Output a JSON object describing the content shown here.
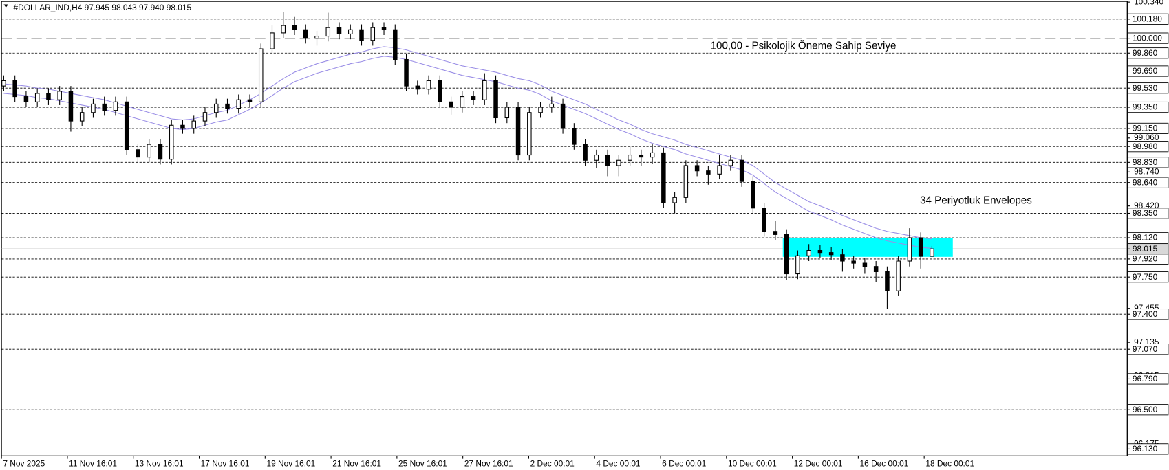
{
  "chart_data": {
    "type": "candlestick",
    "title": "#DOLLAR_IND,H4  97.945 98.043 97.940 98.015",
    "xlabels": [
      "7 Nov 2025",
      "11 Nov 16:01",
      "13 Nov 16:01",
      "17 Nov 16:01",
      "19 Nov 16:01",
      "21 Nov 16:01",
      "25 Nov 16:01",
      "27 Nov 16:01",
      "2 Dec 00:01",
      "4 Dec 00:01",
      "6 Dec 00:01",
      "10 Dec 00:01",
      "12 Dec 00:01",
      "16 Dec 00:01",
      "18 Dec 00:01"
    ],
    "open": [
      99.55,
      99.6,
      99.45,
      99.4,
      99.48,
      99.42,
      99.5,
      99.22,
      99.3,
      99.38,
      99.32,
      99.4,
      98.95,
      98.88,
      99.0,
      98.86,
      99.18,
      99.15,
      99.22,
      99.3,
      99.38,
      99.34,
      99.42,
      99.4,
      99.9,
      100.05,
      100.12,
      100.08,
      100.0,
      100.02,
      100.1,
      100.04,
      100.08,
      99.98,
      100.1,
      100.08,
      99.8,
      99.55,
      99.52,
      99.6,
      99.4,
      99.35,
      99.45,
      99.42,
      99.6,
      99.25,
      99.35,
      98.9,
      99.3,
      99.35,
      99.38,
      99.15,
      99.0,
      98.85,
      98.9,
      98.8,
      98.85,
      98.9,
      98.88,
      98.92,
      98.45,
      98.5,
      98.8,
      98.75,
      98.72,
      98.8,
      98.85,
      98.65,
      98.4,
      98.18,
      98.15,
      97.78,
      97.95,
      98.0,
      97.98,
      97.96,
      97.9,
      97.88,
      97.85,
      97.8,
      97.62,
      97.9,
      98.12,
      97.945
    ],
    "high": [
      99.65,
      99.65,
      99.5,
      99.53,
      99.53,
      99.55,
      99.55,
      99.35,
      99.43,
      99.45,
      99.45,
      99.45,
      99.0,
      99.05,
      99.05,
      99.23,
      99.23,
      99.27,
      99.35,
      99.43,
      99.43,
      99.47,
      99.47,
      99.95,
      100.12,
      100.25,
      100.2,
      100.13,
      100.07,
      100.24,
      100.15,
      100.13,
      100.13,
      100.15,
      100.15,
      100.13,
      99.85,
      99.6,
      99.65,
      99.65,
      99.45,
      99.5,
      99.5,
      99.67,
      99.65,
      99.4,
      99.4,
      99.35,
      99.4,
      99.45,
      99.43,
      99.2,
      99.05,
      98.95,
      98.95,
      98.9,
      98.98,
      98.95,
      99.0,
      98.97,
      98.55,
      98.85,
      98.85,
      98.8,
      98.9,
      98.9,
      98.9,
      98.7,
      98.45,
      98.28,
      98.2,
      98.0,
      98.06,
      98.05,
      98.03,
      98.01,
      97.95,
      97.93,
      97.9,
      97.85,
      97.95,
      98.21,
      98.17,
      98.043
    ],
    "low": [
      99.5,
      99.4,
      99.35,
      99.35,
      99.37,
      99.37,
      99.12,
      99.17,
      99.25,
      99.27,
      99.27,
      98.9,
      98.83,
      98.83,
      98.81,
      98.81,
      99.1,
      99.1,
      99.17,
      99.25,
      99.29,
      99.29,
      99.35,
      99.35,
      99.85,
      100.0,
      100.03,
      99.95,
      99.93,
      99.97,
      99.99,
      99.99,
      99.93,
      99.93,
      100.03,
      99.75,
      99.5,
      99.47,
      99.47,
      99.35,
      99.28,
      99.3,
      99.37,
      99.37,
      99.2,
      99.2,
      98.85,
      98.85,
      99.25,
      99.3,
      99.1,
      98.95,
      98.8,
      98.78,
      98.7,
      98.7,
      98.8,
      98.8,
      98.82,
      98.4,
      98.35,
      98.45,
      98.7,
      98.62,
      98.67,
      98.75,
      98.6,
      98.35,
      98.13,
      98.1,
      97.72,
      97.73,
      97.9,
      97.93,
      97.91,
      97.8,
      97.83,
      97.78,
      97.7,
      97.45,
      97.57,
      97.85,
      97.83,
      97.94
    ],
    "close": [
      99.6,
      99.45,
      99.4,
      99.48,
      99.42,
      99.5,
      99.22,
      99.3,
      99.38,
      99.32,
      99.4,
      98.95,
      98.88,
      99.0,
      98.86,
      99.18,
      99.15,
      99.22,
      99.3,
      99.38,
      99.34,
      99.42,
      99.4,
      99.9,
      100.05,
      100.12,
      100.08,
      100.0,
      100.02,
      100.1,
      100.04,
      100.08,
      99.98,
      100.1,
      100.08,
      99.8,
      99.55,
      99.52,
      99.6,
      99.4,
      99.35,
      99.45,
      99.42,
      99.6,
      99.25,
      99.35,
      98.9,
      99.3,
      99.35,
      99.38,
      99.15,
      99.0,
      98.85,
      98.9,
      98.8,
      98.85,
      98.9,
      98.88,
      98.92,
      98.45,
      98.5,
      98.8,
      98.75,
      98.72,
      98.8,
      98.85,
      98.65,
      98.4,
      98.18,
      98.15,
      97.78,
      97.95,
      98.0,
      97.98,
      97.96,
      97.9,
      97.88,
      97.85,
      97.8,
      97.62,
      97.9,
      98.12,
      97.945,
      98.015
    ],
    "envelope_color": "#9a8ee6",
    "envelope_upper": [
      99.57,
      99.56,
      99.55,
      99.53,
      99.52,
      99.5,
      99.48,
      99.46,
      99.44,
      99.42,
      99.39,
      99.36,
      99.33,
      99.3,
      99.27,
      99.24,
      99.23,
      99.24,
      99.27,
      99.3,
      99.32,
      99.37,
      99.42,
      99.48,
      99.55,
      99.62,
      99.68,
      99.72,
      99.76,
      99.79,
      99.82,
      99.85,
      99.87,
      99.9,
      99.92,
      99.91,
      99.89,
      99.86,
      99.83,
      99.8,
      99.77,
      99.74,
      99.72,
      99.7,
      99.68,
      99.65,
      99.62,
      99.6,
      99.56,
      99.5,
      99.46,
      99.42,
      99.38,
      99.33,
      99.28,
      99.23,
      99.19,
      99.14,
      99.1,
      99.07,
      99.04,
      99.0,
      98.97,
      98.94,
      98.91,
      98.88,
      98.85,
      98.8,
      98.72,
      98.64,
      98.58,
      98.52,
      98.46,
      98.42,
      98.38,
      98.33,
      98.29,
      98.25,
      98.21,
      98.18,
      98.16,
      98.14,
      98.12,
      98.11
    ],
    "envelope_lower": [
      99.48,
      99.47,
      99.46,
      99.44,
      99.43,
      99.41,
      99.39,
      99.37,
      99.35,
      99.33,
      99.3,
      99.27,
      99.24,
      99.21,
      99.18,
      99.15,
      99.14,
      99.15,
      99.18,
      99.21,
      99.23,
      99.28,
      99.33,
      99.39,
      99.46,
      99.53,
      99.59,
      99.63,
      99.67,
      99.7,
      99.73,
      99.76,
      99.78,
      99.81,
      99.83,
      99.82,
      99.8,
      99.77,
      99.74,
      99.71,
      99.68,
      99.65,
      99.63,
      99.61,
      99.59,
      99.56,
      99.53,
      99.51,
      99.47,
      99.41,
      99.37,
      99.33,
      99.29,
      99.24,
      99.19,
      99.14,
      99.1,
      99.05,
      99.01,
      98.98,
      98.95,
      98.91,
      98.88,
      98.85,
      98.82,
      98.79,
      98.76,
      98.71,
      98.63,
      98.55,
      98.49,
      98.43,
      98.37,
      98.33,
      98.29,
      98.24,
      98.2,
      98.16,
      98.12,
      98.09,
      98.07,
      98.05,
      98.03,
      98.02
    ],
    "ylim": [
      96.066,
      100.346
    ],
    "yticks": [
      {
        "value": 100.34,
        "label": "100.340"
      },
      {
        "value": 99.06,
        "label": "99.060"
      },
      {
        "value": 98.74,
        "label": "98.740"
      },
      {
        "value": 98.42,
        "label": "98.420"
      },
      {
        "value": 97.455,
        "label": "97.455"
      },
      {
        "value": 97.135,
        "label": "97.135"
      },
      {
        "value": 96.815,
        "label": "96.815"
      },
      {
        "value": 96.175,
        "label": "96.175"
      }
    ],
    "levels": [
      {
        "value": 100.18,
        "label": "100.180"
      },
      {
        "value": 99.86,
        "label": "99.860"
      },
      {
        "value": 99.69,
        "label": "99.690"
      },
      {
        "value": 99.53,
        "label": "99.530"
      },
      {
        "value": 99.35,
        "label": "99.350"
      },
      {
        "value": 99.15,
        "label": "99.150"
      },
      {
        "value": 98.98,
        "label": "98.980"
      },
      {
        "value": 98.83,
        "label": "98.830"
      },
      {
        "value": 98.64,
        "label": "98.640"
      },
      {
        "value": 98.35,
        "label": "98.350"
      },
      {
        "value": 98.12,
        "label": "98.120"
      },
      {
        "value": 97.92,
        "label": "97.920"
      },
      {
        "value": 97.75,
        "label": "97.750"
      },
      {
        "value": 97.4,
        "label": "97.400"
      },
      {
        "value": 97.07,
        "label": "97.070"
      },
      {
        "value": 96.79,
        "label": "96.790"
      },
      {
        "value": 96.5,
        "label": "96.500"
      },
      {
        "value": 96.13,
        "label": "96.130"
      }
    ],
    "key_level": {
      "value": 100,
      "label": "100.000"
    },
    "current_price": {
      "value": 98.015,
      "label": "98.015"
    },
    "zone": {
      "values": [
        97.94,
        98.12
      ],
      "color": "#00ffff"
    },
    "annotations": [
      {
        "text": "100,00 -  Psikolojik Öneme Sahip Seviye",
        "color": "#1c1c8c"
      },
      {
        "text": "34 Periyotluk Envelopes",
        "color": "#5a4fb0"
      }
    ]
  }
}
